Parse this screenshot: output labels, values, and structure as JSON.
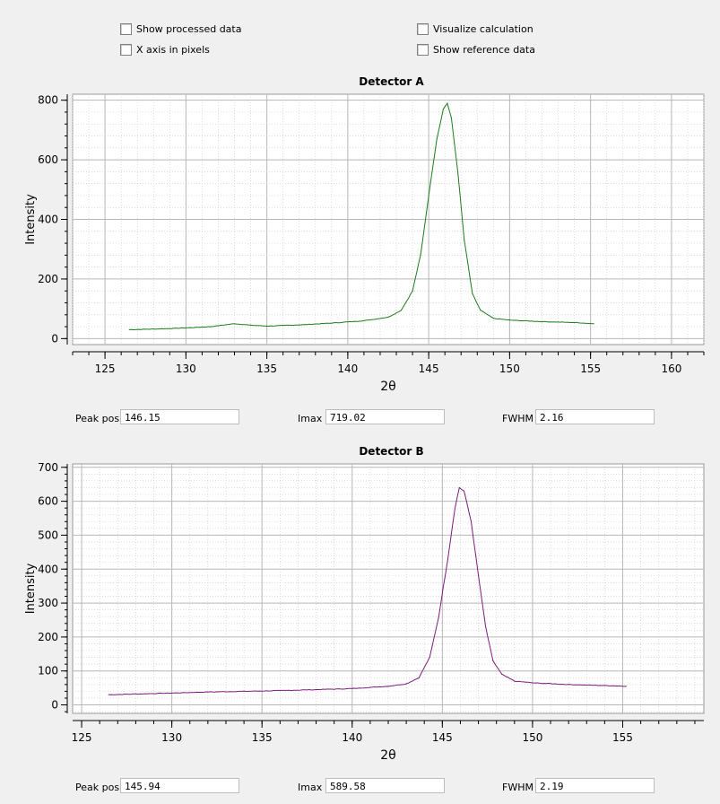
{
  "options": {
    "show_processed": "Show processed data",
    "x_axis_pixels": "X axis in pixels",
    "visualize_calc": "Visualize calculation",
    "show_reference": "Show reference data"
  },
  "plots": [
    {
      "title": "Detector A",
      "xlabel": "2θ",
      "ylabel": "Intensity",
      "color": "#1d7a1d",
      "fields": {
        "peak_label": "Peak pos",
        "peak_value": "146.15",
        "imax_label": "Imax",
        "imax_value": "719.02",
        "fwhm_label": "FWHM",
        "fwhm_value": "2.16"
      }
    },
    {
      "title": "Detector B",
      "xlabel": "2θ",
      "ylabel": "Intensity",
      "color": "#7a1d7a",
      "fields": {
        "peak_label": "Peak pos",
        "peak_value": "145.94",
        "imax_label": "Imax",
        "imax_value": "589.58",
        "fwhm_label": "FWHM",
        "fwhm_value": "2.19"
      }
    }
  ],
  "chart_data": [
    {
      "type": "line",
      "title": "Detector A",
      "xlabel": "2θ",
      "ylabel": "Intensity",
      "xlim": [
        123,
        162
      ],
      "ylim": [
        -20,
        820
      ],
      "xticks": [
        125,
        130,
        135,
        140,
        145,
        150,
        155,
        160
      ],
      "yticks": [
        0,
        200,
        400,
        600,
        800
      ],
      "grid": true,
      "series": [
        {
          "x": [
            126.5,
            128,
            130,
            131.5,
            133,
            134,
            135,
            137,
            139,
            141,
            142.5,
            143.3,
            144,
            144.5,
            145,
            145.5,
            145.9,
            146.15,
            146.4,
            146.8,
            147.2,
            147.7,
            148.2,
            149,
            150,
            152,
            154,
            155.2
          ],
          "y": [
            30,
            32,
            36,
            40,
            50,
            45,
            42,
            46,
            52,
            60,
            72,
            95,
            160,
            280,
            480,
            670,
            770,
            790,
            740,
            560,
            330,
            150,
            95,
            68,
            62,
            57,
            54,
            50
          ]
        }
      ]
    },
    {
      "type": "line",
      "title": "Detector B",
      "xlabel": "2θ",
      "ylabel": "Intensity",
      "xlim": [
        124.5,
        159.5
      ],
      "ylim": [
        -25,
        710
      ],
      "xticks": [
        125,
        130,
        135,
        140,
        145,
        150,
        155
      ],
      "yticks": [
        0,
        100,
        200,
        300,
        400,
        500,
        600,
        700
      ],
      "grid": true,
      "series": [
        {
          "x": [
            126.5,
            128,
            130,
            132,
            134,
            136,
            138,
            140,
            142,
            143,
            143.7,
            144.3,
            144.8,
            145.3,
            145.7,
            145.94,
            146.2,
            146.6,
            147,
            147.4,
            147.8,
            148.3,
            149,
            150,
            152,
            154,
            155.2
          ],
          "y": [
            30,
            32,
            35,
            38,
            40,
            42,
            45,
            48,
            55,
            62,
            80,
            140,
            260,
            430,
            580,
            640,
            630,
            540,
            380,
            230,
            130,
            90,
            70,
            65,
            60,
            57,
            55
          ]
        }
      ]
    }
  ]
}
